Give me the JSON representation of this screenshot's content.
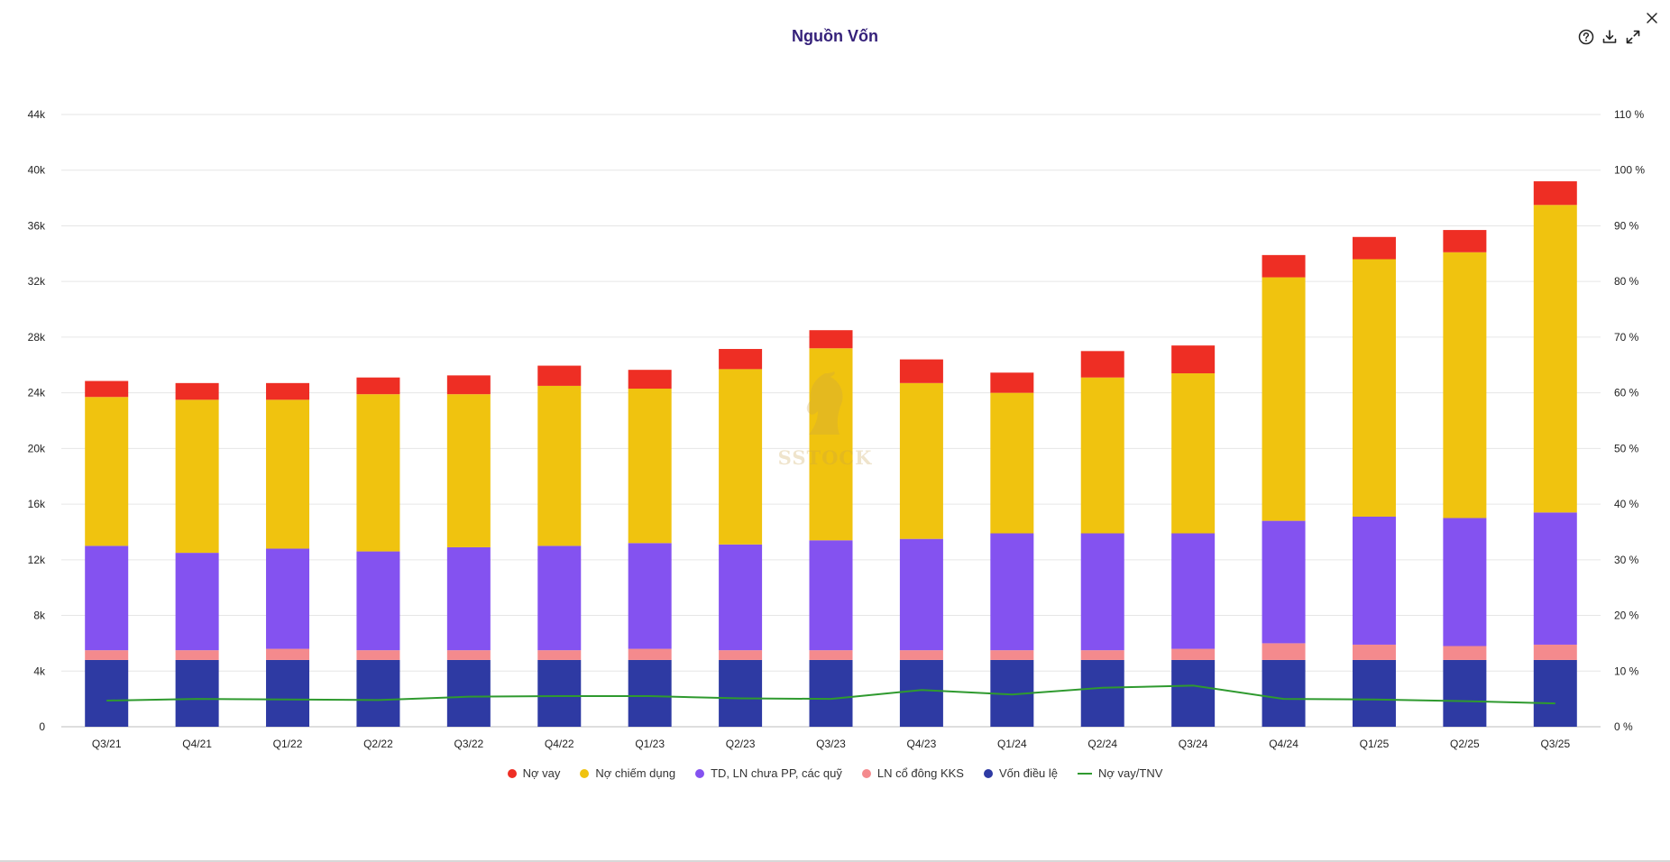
{
  "header": {
    "title": "Nguồn Vốn",
    "help_icon": "help-icon",
    "download_icon": "download-icon",
    "expand_icon": "expand-icon",
    "close_icon": "close-icon"
  },
  "watermark": {
    "text": "SSTOCK",
    "icon": "horse-head-logo"
  },
  "colors": {
    "title": "#35217a",
    "no_vay": "#ee2e24",
    "no_chiem_dung": "#f0c30f",
    "td_ln": "#8452f0",
    "ln_co_dong": "#f48a8d",
    "von_dieu_le": "#2e3aa3",
    "ratio_line": "#2f9a2f",
    "grid": "#e6e6e6"
  },
  "chart_data": {
    "type": "bar",
    "stacked": true,
    "title": "Nguồn Vốn",
    "categories": [
      "Q3/21",
      "Q4/21",
      "Q1/22",
      "Q2/22",
      "Q3/22",
      "Q4/22",
      "Q1/23",
      "Q2/23",
      "Q3/23",
      "Q4/23",
      "Q1/24",
      "Q2/24",
      "Q3/24",
      "Q4/24",
      "Q1/25",
      "Q2/25",
      "Q3/25"
    ],
    "y_left": {
      "min": 0,
      "max": 44000,
      "ticks": [
        "0",
        "4k",
        "8k",
        "12k",
        "16k",
        "20k",
        "24k",
        "28k",
        "32k",
        "36k",
        "40k",
        "44k"
      ]
    },
    "y_right": {
      "min": 0,
      "max": 110,
      "ticks": [
        "0 %",
        "10 %",
        "20 %",
        "30 %",
        "40 %",
        "50 %",
        "60 %",
        "70 %",
        "80 %",
        "90 %",
        "100 %",
        "110 %"
      ]
    },
    "series": [
      {
        "name": "Vốn điều lệ",
        "color": "#2e3aa3",
        "type": "bar",
        "values": [
          4800,
          4800,
          4800,
          4800,
          4800,
          4800,
          4800,
          4800,
          4800,
          4800,
          4800,
          4800,
          4800,
          4800,
          4800,
          4800,
          4800
        ]
      },
      {
        "name": "LN cổ đông KKS",
        "color": "#f48a8d",
        "type": "bar",
        "values": [
          700,
          700,
          800,
          700,
          700,
          700,
          800,
          700,
          700,
          700,
          700,
          700,
          800,
          1200,
          1100,
          1000,
          1100
        ]
      },
      {
        "name": "TD, LN chưa PP, các quỹ",
        "color": "#8452f0",
        "type": "bar",
        "values": [
          7500,
          7000,
          7200,
          7100,
          7400,
          7500,
          7600,
          7600,
          7900,
          8000,
          8400,
          8400,
          8300,
          8800,
          9200,
          9200,
          9500
        ]
      },
      {
        "name": "Nợ chiếm dụng",
        "color": "#f0c30f",
        "type": "bar",
        "values": [
          10700,
          11000,
          10700,
          11300,
          11000,
          11500,
          11100,
          12600,
          13800,
          11200,
          10100,
          11200,
          11500,
          17500,
          18500,
          19100,
          22100
        ]
      },
      {
        "name": "Nợ vay",
        "color": "#ee2e24",
        "type": "bar",
        "values": [
          1150,
          1200,
          1200,
          1200,
          1350,
          1450,
          1350,
          1450,
          1300,
          1700,
          1450,
          1900,
          2000,
          1600,
          1600,
          1600,
          1700
        ]
      },
      {
        "name": "Nợ vay/TNV",
        "color": "#2f9a2f",
        "type": "line",
        "axis": "right",
        "values": [
          4.7,
          5.0,
          4.9,
          4.8,
          5.4,
          5.5,
          5.5,
          5.1,
          5.0,
          6.6,
          5.8,
          7.0,
          7.4,
          5.0,
          4.9,
          4.6,
          4.2
        ]
      }
    ],
    "legend": [
      "Nợ vay",
      "Nợ chiếm dụng",
      "TD, LN chưa PP, các quỹ",
      "LN cổ đông KKS",
      "Vốn điều lệ",
      "Nợ vay/TNV"
    ],
    "legend_position": "bottom-center",
    "grid": true
  }
}
